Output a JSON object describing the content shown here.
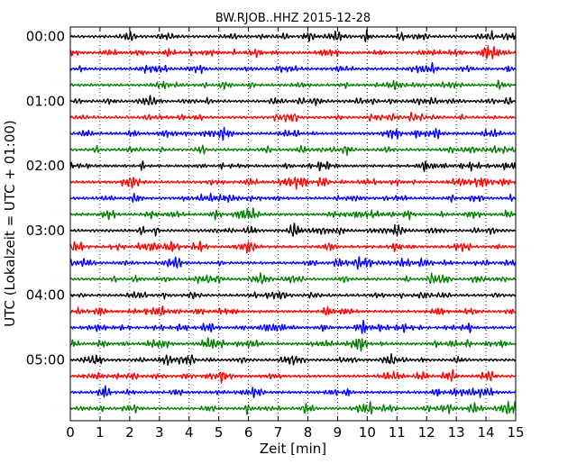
{
  "chart_data": {
    "type": "line",
    "title": "BW.RJOB..HHZ 2015-12-28",
    "xlabel": "Zeit  [min]",
    "ylabel": "UTC (Lokalzeit = UTC + 01:00)",
    "xlim": [
      0,
      15
    ],
    "x_ticks": [
      "0",
      "1",
      "2",
      "3",
      "4",
      "5",
      "6",
      "7",
      "8",
      "9",
      "10",
      "11",
      "12",
      "13",
      "14",
      "15"
    ],
    "y_ticks": [
      {
        "label": "00:00",
        "line": 0
      },
      {
        "label": "01:00",
        "line": 4
      },
      {
        "label": "02:00",
        "line": 8
      },
      {
        "label": "03:00",
        "line": 12
      },
      {
        "label": "04:00",
        "line": 16
      },
      {
        "label": "05:00",
        "line": 20
      }
    ],
    "vertical_gridlines": true,
    "trace_colors": [
      "#000000",
      "#ff0000",
      "#0000ff",
      "#007f00"
    ],
    "trace_count": 24,
    "minutes_per_trace": 15,
    "events": [
      {
        "line": 1,
        "minute": 14.0,
        "strength": 2.3
      },
      {
        "line": 8,
        "minute": 8.5,
        "strength": 1.8
      },
      {
        "line": 9,
        "minute": 8.5,
        "strength": 1.8
      },
      {
        "line": 13,
        "minute": 6.0,
        "strength": 1.7
      },
      {
        "line": 18,
        "minute": 9.8,
        "strength": 1.9
      },
      {
        "line": 19,
        "minute": 9.8,
        "strength": 2.6
      },
      {
        "line": 21,
        "minute": 12.8,
        "strength": 1.8
      },
      {
        "line": 22,
        "minute": 6.3,
        "strength": 1.5
      },
      {
        "line": 23,
        "minute": 8.0,
        "strength": 1.8
      },
      {
        "line": 23,
        "minute": 14.9,
        "strength": 1.8
      }
    ]
  }
}
